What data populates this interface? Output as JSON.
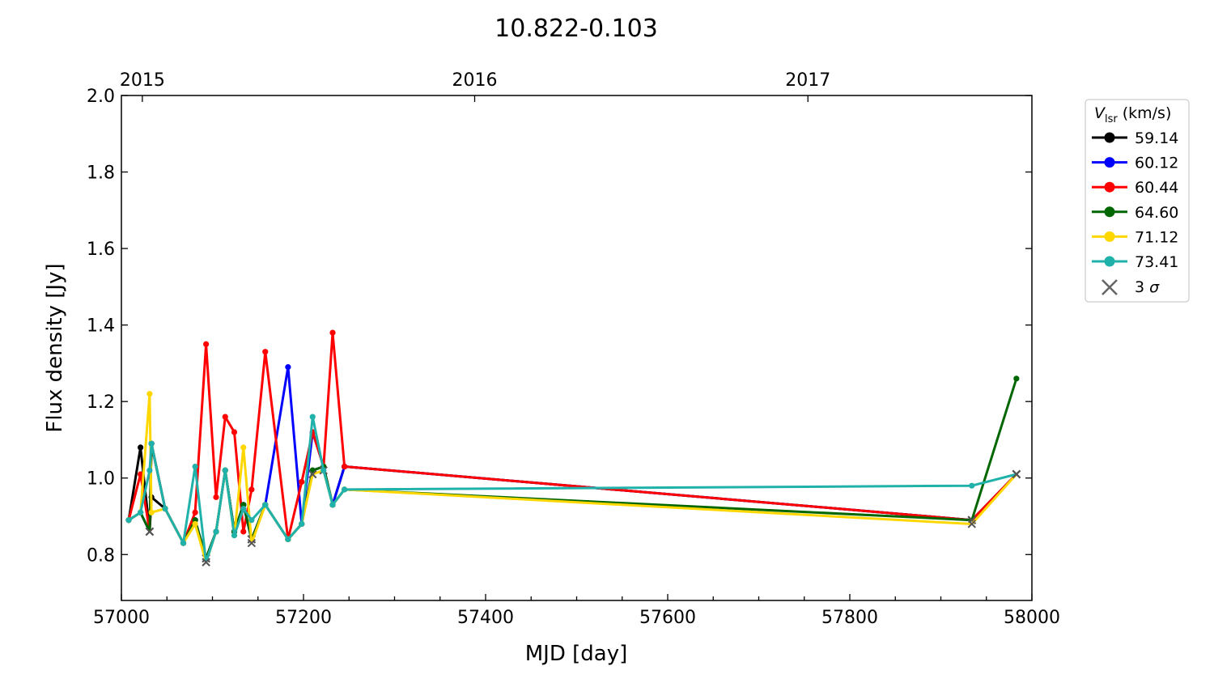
{
  "chart_data": {
    "type": "line",
    "title": "10.822-0.103",
    "xlabel": "MJD [day]",
    "ylabel": "Flux density [Jy]",
    "top_xlabels": [
      "2015",
      "2016",
      "2017"
    ],
    "top_xlabel_mjd": [
      57023,
      57388,
      57754
    ],
    "xlim": [
      57000,
      58000
    ],
    "ylim": [
      0.68,
      2.0
    ],
    "x_ticks": [
      57000,
      57200,
      57400,
      57600,
      57800,
      58000
    ],
    "y_ticks": [
      0.8,
      1.0,
      1.2,
      1.4,
      1.6,
      1.8,
      2.0
    ],
    "y_tick_labels": [
      "0.8",
      "1.0",
      "1.2",
      "1.4",
      "1.6",
      "1.8",
      "2.0"
    ],
    "legend_title": "V",
    "legend_title_sub": "lsr",
    "legend_title_unit": "(km/s)",
    "legend_position": "outside-top-right",
    "sigma_label_num": "3",
    "sigma_label_sym": "σ",
    "x": [
      57008,
      57021,
      57031,
      57033,
      57048,
      57068,
      57081,
      57093,
      57104,
      57114,
      57124,
      57134,
      57143,
      57158,
      57183,
      57198,
      57210,
      57222,
      57232,
      57245,
      57934,
      57983
    ],
    "series": [
      {
        "name": "59.14",
        "color": "#000000",
        "values": [
          0.89,
          1.08,
          0.86,
          0.95,
          0.92,
          0.83,
          0.89,
          0.79,
          0.86,
          1.02,
          0.86,
          0.93,
          0.84,
          0.93,
          0.84,
          0.88,
          1.02,
          1.03,
          0.93,
          1.03,
          0.89,
          1.01
        ],
        "sigma": [
          false,
          false,
          true,
          false,
          false,
          false,
          false,
          true,
          false,
          false,
          false,
          false,
          true,
          false,
          false,
          false,
          false,
          false,
          false,
          false,
          true,
          true
        ]
      },
      {
        "name": "60.12",
        "color": "#0000ff",
        "values": [
          0.89,
          0.91,
          0.86,
          1.09,
          0.92,
          0.83,
          0.89,
          0.79,
          0.86,
          1.02,
          0.86,
          0.93,
          0.84,
          0.93,
          1.29,
          0.88,
          1.12,
          1.03,
          0.93,
          1.03,
          0.89,
          1.01
        ],
        "sigma": [
          false,
          false,
          true,
          false,
          false,
          false,
          false,
          true,
          false,
          false,
          false,
          false,
          true,
          false,
          false,
          false,
          false,
          false,
          false,
          false,
          true,
          true
        ]
      },
      {
        "name": "60.44",
        "color": "#ff0000",
        "values": [
          0.89,
          1.01,
          0.86,
          1.09,
          0.92,
          0.83,
          0.91,
          1.35,
          0.95,
          1.16,
          1.12,
          0.86,
          0.97,
          1.33,
          0.84,
          0.99,
          1.12,
          1.03,
          1.38,
          1.03,
          0.89,
          1.01
        ],
        "sigma": [
          false,
          false,
          true,
          false,
          false,
          false,
          false,
          false,
          false,
          false,
          false,
          false,
          false,
          false,
          false,
          false,
          false,
          false,
          false,
          false,
          true,
          true
        ]
      },
      {
        "name": "64.60",
        "color": "#006600",
        "values": [
          0.89,
          0.91,
          0.86,
          1.09,
          0.92,
          0.83,
          0.89,
          0.79,
          0.86,
          1.02,
          0.86,
          0.93,
          0.84,
          0.93,
          0.84,
          0.88,
          1.02,
          1.03,
          0.93,
          0.97,
          0.89,
          1.26
        ],
        "sigma": [
          false,
          false,
          true,
          false,
          false,
          false,
          false,
          true,
          false,
          false,
          false,
          false,
          true,
          false,
          false,
          false,
          false,
          false,
          false,
          false,
          true,
          false
        ]
      },
      {
        "name": "71.12",
        "color": "#ffd700",
        "values": [
          0.89,
          0.91,
          1.22,
          0.91,
          0.92,
          0.83,
          0.88,
          0.78,
          0.86,
          1.02,
          0.85,
          1.08,
          0.83,
          0.93,
          0.84,
          0.88,
          1.01,
          1.02,
          0.93,
          0.97,
          0.88,
          1.01
        ],
        "sigma": [
          false,
          false,
          false,
          false,
          false,
          false,
          false,
          true,
          false,
          false,
          false,
          false,
          true,
          false,
          false,
          false,
          true,
          true,
          false,
          false,
          true,
          true
        ]
      },
      {
        "name": "73.41",
        "color": "#20b2aa",
        "values": [
          0.89,
          0.91,
          1.02,
          1.09,
          0.92,
          0.83,
          1.03,
          0.78,
          0.86,
          1.02,
          0.85,
          0.92,
          0.89,
          0.93,
          0.84,
          0.88,
          1.16,
          1.02,
          0.93,
          0.97,
          0.98,
          1.01
        ],
        "sigma": [
          false,
          false,
          false,
          false,
          false,
          false,
          false,
          true,
          false,
          false,
          false,
          false,
          false,
          false,
          false,
          false,
          false,
          false,
          false,
          false,
          false,
          true
        ]
      }
    ]
  }
}
